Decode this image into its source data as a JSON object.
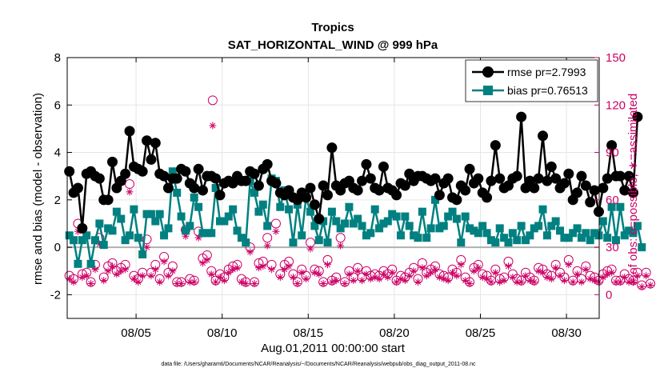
{
  "chart_data": {
    "type": "line",
    "title_line1": "Tropics",
    "title_line2": "SAT_HORIZONTAL_WIND @ 999 hPa",
    "xlabel": "Aug.01,2011 00:00:00 start",
    "ylabel_left": "rmse and bias (model - observation)",
    "ylabel_right": "# of obs: o=possible; ∗=assimilated",
    "footnote": "data file: /Users/gharamti/Documents/NCAR/Reanalysis/~/Documents/NCAR/Reanalysis/webpub/obs_diag_output_2011-08.nc",
    "xlim": [
      1.0,
      31.9
    ],
    "ylim_left": [
      -3,
      8
    ],
    "ylim_right": [
      -15,
      150
    ],
    "x_ticks": [
      5,
      10,
      15,
      20,
      25,
      30
    ],
    "x_tick_labels": [
      "08/05",
      "08/10",
      "08/15",
      "08/20",
      "08/25",
      "08/30"
    ],
    "y_ticks_left": [
      -2,
      0,
      2,
      4,
      6,
      8
    ],
    "y_tick_labels_left": [
      "-2",
      "0",
      "2",
      "4",
      "6",
      "8"
    ],
    "y_ticks_right": [
      0,
      30,
      60,
      90,
      120,
      150
    ],
    "y_tick_labels_right": [
      "0",
      "30",
      "60",
      "90",
      "120",
      "150"
    ],
    "x_start": 1.125,
    "x_step": 0.25,
    "series": [
      {
        "name": "rmse",
        "legend": "rmse pr=2.7993",
        "color": "#000000",
        "values": [
          3.2,
          2.3,
          2.5,
          0.8,
          3.1,
          3.2,
          3.0,
          2.9,
          2.0,
          2.0,
          3.6,
          2.5,
          2.8,
          3.1,
          4.9,
          3.4,
          3.3,
          3.2,
          4.5,
          3.7,
          4.4,
          3.1,
          3.0,
          2.5,
          2.9,
          2.9,
          3.3,
          3.2,
          2.7,
          2.5,
          3.3,
          2.4,
          3.0,
          3.0,
          2.9,
          2.2,
          2.7,
          2.8,
          2.7,
          3.0,
          2.8,
          2.8,
          3.2,
          3.1,
          2.6,
          3.3,
          3.5,
          2.8,
          2.7,
          2.3,
          2.2,
          2.4,
          2.1,
          2.0,
          2.3,
          2.1,
          2.5,
          1.8,
          1.2,
          2.6,
          2.2,
          4.2,
          2.6,
          2.4,
          2.7,
          2.8,
          2.5,
          2.4,
          2.8,
          3.5,
          2.9,
          2.5,
          2.4,
          3.4,
          2.5,
          2.4,
          2.2,
          2.7,
          2.6,
          3.1,
          2.8,
          3.0,
          3.0,
          2.9,
          2.8,
          2.9,
          2.2,
          2.7,
          2.9,
          2.1,
          2.0,
          2.6,
          2.4,
          3.3,
          2.7,
          2.9,
          2.3,
          2.1,
          2.8,
          4.3,
          2.9,
          2.5,
          2.6,
          2.9,
          3.0,
          5.5,
          2.5,
          2.8,
          2.5,
          2.9,
          4.7,
          2.8,
          3.4,
          2.9,
          2.5,
          2.7,
          3.1,
          2.0,
          2.3,
          3.0,
          2.6,
          1.9,
          2.4,
          1.5,
          2.5,
          2.9,
          4.3,
          3.0,
          3.0,
          2.4,
          3.0,
          2.3,
          5.5
        ]
      },
      {
        "name": "bias",
        "legend": "bias pr=0.76513",
        "color": "#008080",
        "values": [
          0.5,
          0.3,
          -0.7,
          0.3,
          0.5,
          -0.7,
          0.3,
          1.0,
          0.1,
          0.8,
          0.7,
          1.5,
          1.2,
          0.3,
          0.5,
          1.6,
          0.4,
          -0.3,
          1.4,
          1.4,
          1.1,
          1.4,
          0.5,
          0.8,
          3.2,
          2.3,
          1.3,
          0.7,
          0.9,
          2.1,
          1.7,
          0.6,
          0.6,
          0.6,
          2.5,
          1.1,
          1.1,
          1.3,
          1.6,
          0.7,
          0.4,
          0.2,
          2.8,
          2.3,
          1.5,
          1.8,
          0.9,
          2.9,
          2.8,
          1.7,
          2.4,
          1.6,
          0.2,
          1.8,
          0.5,
          2.1,
          1.5,
          0.9,
          0.3,
          1.1,
          0.2,
          1.5,
          1.1,
          0.8,
          1.0,
          1.7,
          1.0,
          1.2,
          0.9,
          0.5,
          0.6,
          1.6,
          0.8,
          1.0,
          1.1,
          1.4,
          1.3,
          0.5,
          1.3,
          0.9,
          0.5,
          0.4,
          1.5,
          0.4,
          0.8,
          2.0,
          0.8,
          0.9,
          1.3,
          1.5,
          1.2,
          0.2,
          1.3,
          0.8,
          0.7,
          0.6,
          0.9,
          0.6,
          0.3,
          0.2,
          0.8,
          0.4,
          0.2,
          0.6,
          0.3,
          0.9,
          0.3,
          0.5,
          0.8,
          0.9,
          1.6,
          0.5,
          0.9,
          1.1,
          0.7,
          0.4,
          0.4,
          0.6,
          0.8,
          0.4,
          0.6,
          0.3,
          0.6,
          0.5,
          1.1,
          0.4,
          1.7,
          0.3,
          1.7,
          0.5,
          0.7,
          0.6,
          0.9,
          0.0
        ]
      },
      {
        "name": "possible",
        "legend": "o=possible",
        "color": "#cc0066",
        "values": [
          12,
          10,
          45,
          13,
          14,
          8,
          19,
          36,
          11,
          18,
          20,
          15,
          17,
          19,
          70,
          12,
          10,
          14,
          35,
          14,
          19,
          10,
          24,
          14,
          18,
          8,
          8,
          41,
          10,
          9,
          40,
          23,
          25,
          15,
          9,
          13,
          11,
          16,
          18,
          19,
          10,
          8,
          30,
          8,
          20,
          21,
          36,
          19,
          45,
          13,
          19,
          21,
          13,
          8,
          16,
          12,
          33,
          16,
          15,
          8,
          22,
          9,
          11,
          36,
          8,
          15,
          11,
          17,
          11,
          15,
          12,
          13,
          12,
          15,
          13,
          16,
          9,
          12,
          11,
          14,
          17,
          10,
          20,
          14,
          16,
          18,
          13,
          12,
          11,
          16,
          14,
          22,
          11,
          8,
          17,
          19,
          13,
          12,
          9,
          16,
          10,
          11,
          21,
          13,
          10,
          9,
          14,
          11,
          9,
          17,
          16,
          13,
          12,
          19,
          14,
          11,
          22,
          9,
          15,
          10,
          18,
          12,
          11,
          9,
          13,
          15,
          16,
          9,
          9,
          13,
          10,
          9,
          14,
          6,
          14,
          7
        ]
      },
      {
        "name": "assimilated",
        "legend": "∗=assimilated",
        "color": "#cc0066",
        "values": [
          10,
          8,
          40,
          11,
          12,
          7,
          16,
          32,
          9,
          15,
          18,
          13,
          15,
          16,
          65,
          10,
          8,
          12,
          30,
          12,
          16,
          8,
          21,
          12,
          15,
          7,
          7,
          37,
          8,
          8,
          36,
          20,
          22,
          13,
          8,
          11,
          9,
          14,
          16,
          17,
          8,
          7,
          27,
          7,
          17,
          18,
          31,
          16,
          40,
          11,
          16,
          18,
          11,
          7,
          14,
          10,
          29,
          14,
          13,
          7,
          19,
          8,
          9,
          31,
          7,
          13,
          9,
          15,
          9,
          13,
          10,
          11,
          10,
          13,
          11,
          14,
          8,
          10,
          9,
          12,
          15,
          8,
          17,
          12,
          14,
          16,
          11,
          10,
          9,
          14,
          12,
          19,
          9,
          7,
          15,
          17,
          11,
          10,
          8,
          14,
          8,
          9,
          18,
          11,
          8,
          8,
          12,
          9,
          8,
          15,
          14,
          11,
          10,
          17,
          12,
          9,
          19,
          8,
          13,
          8,
          16,
          10,
          9,
          8,
          11,
          13,
          14,
          8,
          8,
          11,
          8,
          8,
          12,
          5,
          12,
          6
        ]
      }
    ],
    "outliers_possible": [
      {
        "x": 9.45,
        "y": 123
      }
    ],
    "outliers_assimilated": [
      {
        "x": 9.45,
        "y": 107
      }
    ]
  }
}
